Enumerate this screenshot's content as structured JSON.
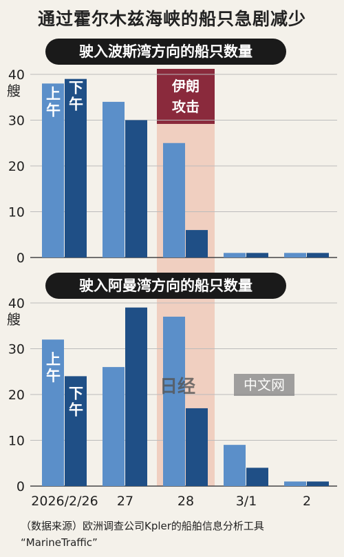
{
  "title": "通过霍尔木兹海峡的船只急剧减少",
  "panels": [
    {
      "title": "驶入波斯湾方向的船只数量",
      "unit": "艘"
    },
    {
      "title": "驶入阿曼湾方向的船只数量",
      "unit": "艘"
    }
  ],
  "am_label": "上午",
  "pm_label": "下午",
  "annotation": "伊朗攻击",
  "watermark": {
    "logo": "日经",
    "text": "中文网"
  },
  "source": "（数据来源）欧洲调查公司Kpler的船舶信息分析工具 “MarineTraffic”",
  "colors": {
    "am": "#5b8fc9",
    "pm": "#1f4f86",
    "highlight": "#f0cfc0",
    "annotation": "#8a2a3c"
  },
  "chart_data": [
    {
      "type": "bar",
      "title": "驶入波斯湾方向的船只数量",
      "ylabel": "艘",
      "categories": [
        "2026/2/26",
        "27",
        "28",
        "3/1",
        "2"
      ],
      "series": [
        {
          "name": "上午",
          "values": [
            38,
            34,
            25,
            1,
            1
          ]
        },
        {
          "name": "下午",
          "values": [
            39,
            30,
            6,
            1,
            1
          ]
        }
      ],
      "ylim": [
        0,
        40
      ],
      "yticks": [
        0,
        10,
        20,
        30,
        40
      ],
      "highlight_category": "28",
      "annotation": "伊朗攻击"
    },
    {
      "type": "bar",
      "title": "驶入阿曼湾方向的船只数量",
      "ylabel": "艘",
      "categories": [
        "2026/2/26",
        "27",
        "28",
        "3/1",
        "2"
      ],
      "series": [
        {
          "name": "上午",
          "values": [
            32,
            26,
            37,
            9,
            1
          ]
        },
        {
          "name": "下午",
          "values": [
            24,
            39,
            17,
            4,
            1
          ]
        }
      ],
      "ylim": [
        0,
        40
      ],
      "yticks": [
        0,
        10,
        20,
        30,
        40
      ],
      "highlight_category": "28"
    }
  ]
}
